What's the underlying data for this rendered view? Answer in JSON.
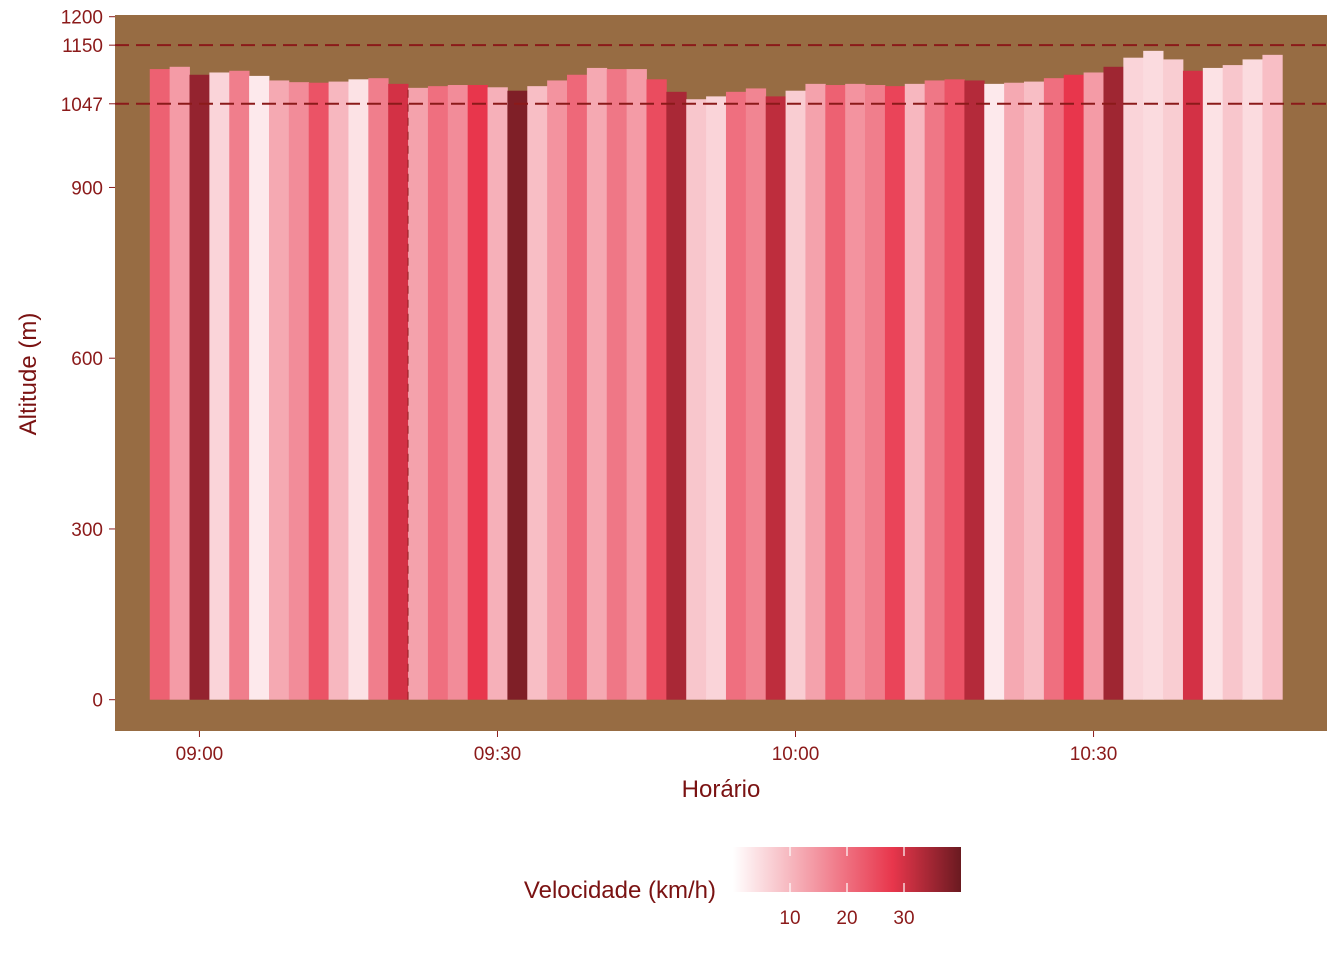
{
  "chart_data": {
    "type": "area",
    "xlabel": "Horário",
    "ylabel": "Altitude (m)",
    "x_ticks": [
      "09:00",
      "09:30",
      "10:00",
      "10:30"
    ],
    "x_tick_values_min": [
      540,
      570,
      600,
      630
    ],
    "xlim_min": [
      531.5,
      653.5
    ],
    "y_ticks": [
      0,
      300,
      600,
      900,
      1047,
      1150,
      1200
    ],
    "ylim": [
      -55,
      1203
    ],
    "reference_lines": [
      1047,
      1150
    ],
    "vertical_reference_time": "09:21",
    "fill_colors": {
      "panel": "#976C43",
      "reference_line": "#8B1A1A",
      "color_low": "#FFFFFF",
      "color_mid": "#E8364C",
      "color_high": "#6A1A20"
    },
    "series": [
      {
        "time": [
          "08:56",
          "08:58",
          "09:00",
          "09:02",
          "09:04",
          "09:06",
          "09:08",
          "09:10",
          "09:12",
          "09:14",
          "09:16",
          "09:18",
          "09:20",
          "09:22",
          "09:24",
          "09:26",
          "09:28",
          "09:30",
          "09:32",
          "09:34",
          "09:36",
          "09:38",
          "09:40",
          "09:42",
          "09:44",
          "09:46",
          "09:48",
          "09:50",
          "09:52",
          "09:54",
          "09:56",
          "09:58",
          "10:00",
          "10:02",
          "10:04",
          "10:06",
          "10:08",
          "10:10",
          "10:12",
          "10:14",
          "10:16",
          "10:18",
          "10:20",
          "10:22",
          "10:24",
          "10:26",
          "10:28",
          "10:30",
          "10:32",
          "10:34",
          "10:36",
          "10:38",
          "10:40",
          "10:42",
          "10:44",
          "10:46",
          "10:48"
        ],
        "altitude": [
          1108,
          1112,
          1098,
          1102,
          1105,
          1096,
          1088,
          1085,
          1084,
          1086,
          1090,
          1092,
          1082,
          1075,
          1078,
          1080,
          1080,
          1076,
          1070,
          1078,
          1088,
          1098,
          1110,
          1108,
          1108,
          1090,
          1068,
          1055,
          1060,
          1068,
          1074,
          1060,
          1070,
          1082,
          1080,
          1082,
          1080,
          1078,
          1082,
          1088,
          1090,
          1088,
          1082,
          1084,
          1086,
          1092,
          1098,
          1102,
          1112,
          1128,
          1140,
          1125,
          1105,
          1110,
          1115,
          1125,
          1133
        ],
        "speed": [
          22,
          14,
          36,
          6,
          18,
          3,
          12,
          16,
          24,
          10,
          4,
          18,
          30,
          13,
          20,
          16,
          28,
          11,
          38,
          9,
          15,
          21,
          12,
          19,
          14,
          25,
          34,
          8,
          6,
          20,
          17,
          32,
          7,
          13,
          22,
          15,
          18,
          26,
          10,
          19,
          24,
          33,
          3,
          12,
          9,
          20,
          28,
          14,
          35,
          6,
          5,
          7,
          30,
          4,
          8,
          5,
          9
        ]
      }
    ],
    "legend": {
      "title": "Velocidade (km/h)",
      "ticks": [
        "10",
        "20",
        "30"
      ],
      "tick_values": [
        10,
        20,
        30
      ],
      "range": [
        0,
        40
      ],
      "position": "bottom"
    }
  }
}
